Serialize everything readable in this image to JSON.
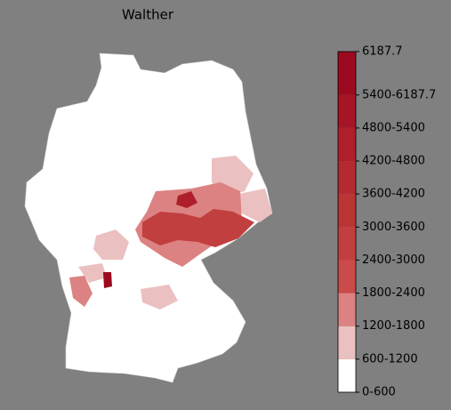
{
  "title": "Walther",
  "colorbar": {
    "lim": [
      0,
      6187.7
    ],
    "ticks": [
      {
        "value": 0,
        "label": "0-600"
      },
      {
        "value": 600,
        "label": "600-1200"
      },
      {
        "value": 1200,
        "label": "1200-1800"
      },
      {
        "value": 1800,
        "label": "1800-2400"
      },
      {
        "value": 2400,
        "label": "2400-3000"
      },
      {
        "value": 3000,
        "label": "3000-3600"
      },
      {
        "value": 3600,
        "label": "3600-4200"
      },
      {
        "value": 4200,
        "label": "4200-4800"
      },
      {
        "value": 4800,
        "label": "4800-5400"
      },
      {
        "value": 5400,
        "label": "5400-6187.7"
      },
      {
        "value": 6187.7,
        "label": "6187.7"
      }
    ],
    "colors": [
      "#ffffff",
      "#ebc0c0",
      "#dc8282",
      "#cb4a4a",
      "#c23f3f",
      "#bb3535",
      "#b52a30",
      "#ae1f2b",
      "#a51526",
      "#9b0a1e"
    ]
  }
}
